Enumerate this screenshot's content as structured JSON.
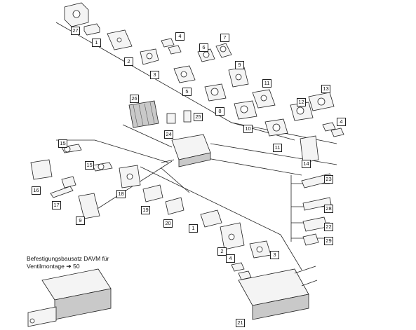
{
  "caption": {
    "line1": "Befestigungsbausatz DAVM für",
    "line2_prefix": "Ventilmontage",
    "arrow": "➔",
    "page": "50"
  },
  "labels": {
    "l27": "27",
    "l1a": "1",
    "l2a": "2",
    "l3a": "3",
    "l4a": "4",
    "l7": "7",
    "l6": "6",
    "l9a": "9",
    "l5": "5",
    "l8": "8",
    "l11a": "11",
    "l12": "12",
    "l13": "13",
    "l10": "10",
    "l11b": "11",
    "l4b": "4",
    "l26": "26",
    "l25": "25",
    "l24": "24",
    "l14": "14",
    "l15a": "15",
    "l15b": "15",
    "l16": "16",
    "l17": "17",
    "l18": "18",
    "l19": "19",
    "l20": "20",
    "l9b": "9",
    "l23": "23",
    "l28": "28",
    "l22": "22",
    "l29": "29",
    "l1b": "1",
    "l2b": "2",
    "l3b": "3",
    "l4c": "4",
    "l21": "21"
  },
  "colors": {
    "line": "#222222",
    "part_fill": "#f4f4f4",
    "part_shade": "#c9c9c9",
    "label_border": "#222222"
  }
}
